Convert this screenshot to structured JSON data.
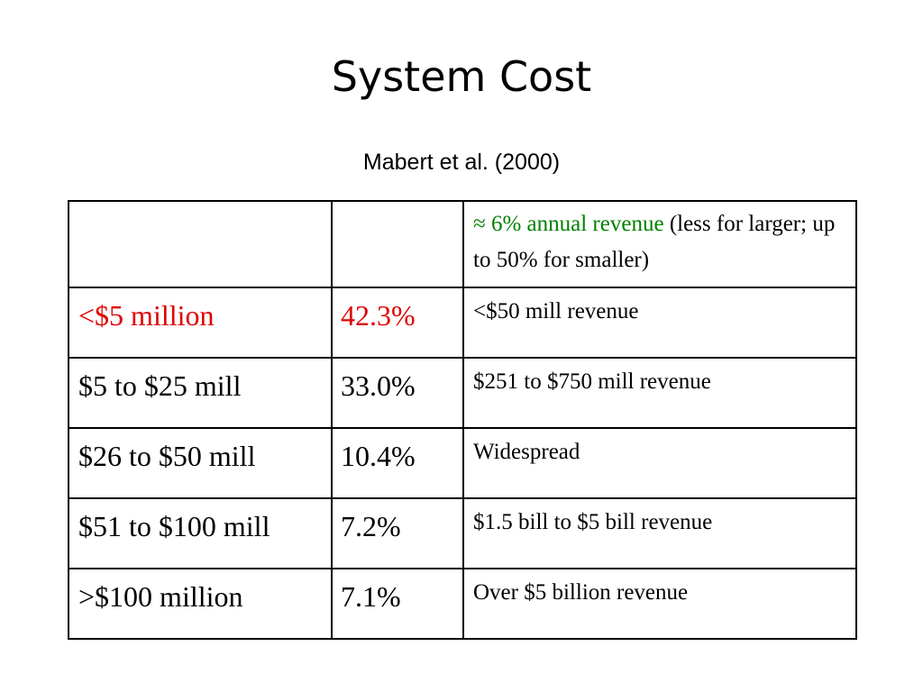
{
  "slide": {
    "title": "System Cost",
    "subtitle": "Mabert et al. (2000)"
  },
  "table": {
    "header": {
      "col1": "",
      "col2": "",
      "col3_highlight": "≈ 6% annual revenue",
      "col3_rest": " (less for larger; up to 50% for smaller)"
    },
    "rows": [
      {
        "range": "<$5 million",
        "percent": "42.3%",
        "note": "<$50 mill revenue"
      },
      {
        "range": "$5 to $25 mill",
        "percent": "33.0%",
        "note": "$251 to $750 mill revenue"
      },
      {
        "range": "$26 to $50 mill",
        "percent": "10.4%",
        "note": "Widespread"
      },
      {
        "range": "$51 to $100 mill",
        "percent": "7.2%",
        "note": "$1.5 bill to $5 bill revenue"
      },
      {
        "range": ">$100 million",
        "percent": "7.1%",
        "note": "Over $5 billion revenue"
      }
    ]
  },
  "colors": {
    "highlight_green": "#008000",
    "highlight_red": "#e00000",
    "text": "#000000"
  }
}
